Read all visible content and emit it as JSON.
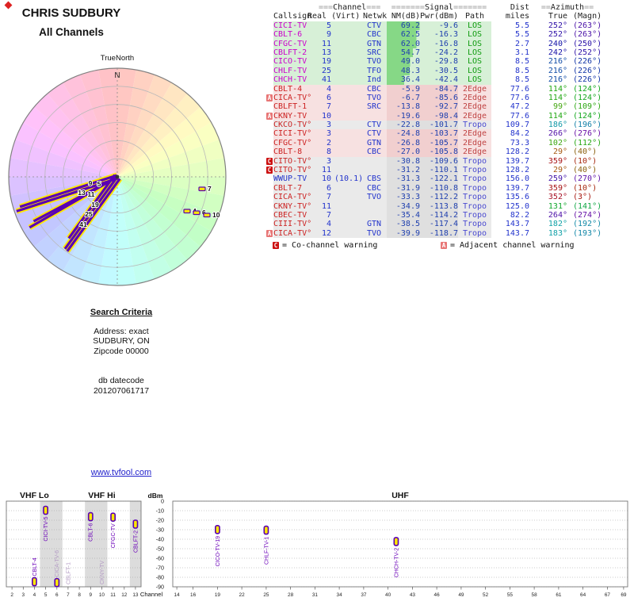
{
  "title": "CHRIS SUDBURY",
  "subtitle": "All Channels",
  "link": {
    "text": "www.tvfool.com"
  },
  "search": {
    "title": "Search Criteria",
    "address": "Address: exact",
    "city": "SUDBURY, ON",
    "zip": "Zipcode 00000",
    "datecode_label": "db datecode",
    "datecode": "201207061717"
  },
  "legend": {
    "c": {
      "letter": "C",
      "text": "= Co-channel warning"
    },
    "a": {
      "letter": "A",
      "text": "= Adjacent channel warning"
    }
  },
  "colors": {
    "callsign_strong": "#cc00cc",
    "callsign_weak": "#cc2222",
    "callsign_digital": "#2233cc",
    "num": "#2233cc",
    "nm": "#1f3fae",
    "nm_bar": "#86d886",
    "path_los": "#0f9b0f",
    "path_edge": "#c04444",
    "path_tropo": "#4b4bd0",
    "badge_c": "#cc1111",
    "badge_a": "#e87676",
    "spoke_purple": "#5a00b4",
    "spoke_yellow": "#ffe800",
    "label_strong": "#6a00b8",
    "label_muted": "#b39ac4",
    "link": "#2222cc"
  },
  "table": {
    "group_headers": {
      "channel": {
        "pre": "===",
        "word": "Channel",
        "post": "==="
      },
      "signal": {
        "pre": "=======",
        "word": "Signal",
        "post": "======="
      },
      "dist": "Dist",
      "azimuth": {
        "pre": "==",
        "word": "Azimuth",
        "post": "=="
      }
    },
    "columns": [
      "Callsign",
      "Real (Virt)",
      "Netwk",
      "NM(dB)",
      "Pwr(dBm)",
      "Path",
      "miles",
      "True",
      "(Magn)"
    ],
    "rows": [
      {
        "cs": "CICI-TV",
        "k": "s",
        "ch": 5,
        "net": "CTV",
        "nm": 69.2,
        "pwr": -9.6,
        "path": "LOS",
        "mi": 5.5,
        "az": 252,
        "mag": 263
      },
      {
        "cs": "CBLT-6",
        "k": "s",
        "ch": 9,
        "net": "CBC",
        "nm": 62.5,
        "pwr": -16.3,
        "path": "LOS",
        "mi": 5.5,
        "az": 252,
        "mag": 263
      },
      {
        "cs": "CFGC-TV",
        "k": "s",
        "ch": 11,
        "net": "GTN",
        "nm": 62.0,
        "pwr": -16.8,
        "path": "LOS",
        "mi": 2.7,
        "az": 240,
        "mag": 250
      },
      {
        "cs": "CBLFT-2",
        "k": "s",
        "ch": 13,
        "net": "SRC",
        "nm": 54.7,
        "pwr": -24.2,
        "path": "LOS",
        "mi": 3.1,
        "az": 242,
        "mag": 252
      },
      {
        "cs": "CICO-TV",
        "k": "s",
        "ch": 19,
        "net": "TVO",
        "nm": 49.0,
        "pwr": -29.8,
        "path": "LOS",
        "mi": 8.5,
        "az": 216,
        "mag": 226
      },
      {
        "cs": "CHLF-TV",
        "k": "s",
        "ch": 25,
        "net": "TFO",
        "nm": 48.3,
        "pwr": -30.5,
        "path": "LOS",
        "mi": 8.5,
        "az": 216,
        "mag": 226
      },
      {
        "cs": "CHCH-TV",
        "k": "s",
        "ch": 41,
        "net": "Ind",
        "nm": 36.4,
        "pwr": -42.4,
        "path": "LOS",
        "mi": 8.5,
        "az": 216,
        "mag": 226
      },
      {
        "cs": "CBLT-4",
        "k": "w",
        "ch": 4,
        "net": "CBC",
        "nm": -5.9,
        "pwr": -84.7,
        "path": "2Edge",
        "mi": 77.6,
        "az": 114,
        "mag": 124
      },
      {
        "w": "A",
        "cs": "CICA-TV°",
        "k": "w",
        "ch": 6,
        "net": "TVO",
        "nm": -6.7,
        "pwr": -85.6,
        "path": "2Edge",
        "mi": 77.6,
        "az": 114,
        "mag": 124
      },
      {
        "cs": "CBLFT-1",
        "k": "w",
        "ch": 7,
        "net": "SRC",
        "nm": -13.8,
        "pwr": -92.7,
        "path": "2Edge",
        "mi": 47.2,
        "az": 99,
        "mag": 109
      },
      {
        "w": "A",
        "cs": "CKNY-TV",
        "k": "w",
        "ch": 10,
        "net": "",
        "nm": -19.6,
        "pwr": -98.4,
        "path": "2Edge",
        "mi": 77.6,
        "az": 114,
        "mag": 124
      },
      {
        "cs": "CKCO-TV°",
        "k": "w",
        "ch": 3,
        "net": "CTV",
        "nm": -22.8,
        "pwr": -101.7,
        "path": "Tropo",
        "mi": 109.7,
        "az": 186,
        "mag": 196
      },
      {
        "cs": "CICI-TV°",
        "k": "w",
        "ch": 3,
        "net": "CTV",
        "nm": -24.8,
        "pwr": -103.7,
        "path": "2Edge",
        "mi": 84.2,
        "az": 266,
        "mag": 276
      },
      {
        "cs": "CFGC-TV°",
        "k": "w",
        "ch": 2,
        "net": "GTN",
        "nm": -26.8,
        "pwr": -105.7,
        "path": "2Edge",
        "mi": 73.3,
        "az": 102,
        "mag": 112
      },
      {
        "cs": "CBLT-8",
        "k": "w",
        "ch": 8,
        "net": "CBC",
        "nm": -27.0,
        "pwr": -105.8,
        "path": "2Edge",
        "mi": 128.2,
        "az": 29,
        "mag": 40
      },
      {
        "w": "C",
        "cs": "CITO-TV°",
        "k": "w",
        "ch": 3,
        "net": "",
        "nm": -30.8,
        "pwr": -109.6,
        "path": "Tropo",
        "mi": 139.7,
        "az": 359,
        "mag": 10
      },
      {
        "w": "C",
        "cs": "CITO-TV°",
        "k": "w",
        "ch": 11,
        "net": "",
        "nm": -31.2,
        "pwr": -110.1,
        "path": "Tropo",
        "mi": 128.2,
        "az": 29,
        "mag": 40
      },
      {
        "cs": "WWUP-TV",
        "k": "d",
        "ch": 10,
        "virt": "(10.1)",
        "net": "CBS",
        "nm": -31.3,
        "pwr": -122.1,
        "path": "Tropo",
        "mi": 156.0,
        "az": 259,
        "mag": 270
      },
      {
        "cs": "CBLT-7",
        "k": "w",
        "ch": 6,
        "net": "CBC",
        "nm": -31.9,
        "pwr": -110.8,
        "path": "Tropo",
        "mi": 139.7,
        "az": 359,
        "mag": 10
      },
      {
        "cs": "CICA-TV°",
        "k": "w",
        "ch": 7,
        "net": "TVO",
        "nm": -33.3,
        "pwr": -112.2,
        "path": "Tropo",
        "mi": 135.6,
        "az": 352,
        "mag": 3
      },
      {
        "cs": "CKNY-TV°",
        "k": "w",
        "ch": 11,
        "net": "",
        "nm": -34.9,
        "pwr": -113.8,
        "path": "Tropo",
        "mi": 125.0,
        "az": 131,
        "mag": 141
      },
      {
        "cs": "CBEC-TV",
        "k": "w",
        "ch": 7,
        "net": "",
        "nm": -35.4,
        "pwr": -114.2,
        "path": "Tropo",
        "mi": 82.2,
        "az": 264,
        "mag": 274
      },
      {
        "cs": "CIII-TV°",
        "k": "w",
        "ch": 4,
        "net": "GTN",
        "nm": -38.5,
        "pwr": -117.4,
        "path": "Tropo",
        "mi": 143.7,
        "az": 182,
        "mag": 192
      },
      {
        "w": "A",
        "cs": "CICA-TV°",
        "k": "w",
        "ch": 12,
        "net": "TVO",
        "nm": -39.9,
        "pwr": -118.7,
        "path": "Tropo",
        "mi": 143.7,
        "az": 183,
        "mag": 193
      }
    ]
  },
  "chart_data": [
    {
      "type": "radar",
      "title": "CHRIS SUDBURY",
      "subtitle": "All Channels",
      "true_north_label": "TrueNorth",
      "north_label": "N",
      "rings": 6,
      "spokes": [
        {
          "ch": "5",
          "az": 252,
          "nm": 69.2,
          "lo": [
            -23,
            12
          ]
        },
        {
          "ch": "9",
          "az": 252,
          "nm": 62.5,
          "lo": [
            -34,
            11
          ]
        },
        {
          "ch": "11",
          "az": 240,
          "nm": 62.0,
          "lo": [
            -33,
            25
          ]
        },
        {
          "ch": "13",
          "az": 242,
          "nm": 54.7,
          "lo": [
            -45,
            23
          ]
        },
        {
          "ch": "19",
          "az": 216,
          "nm": 49.0,
          "lo": [
            -28,
            38
          ]
        },
        {
          "ch": "25",
          "az": 216,
          "nm": 48.3,
          "lo": [
            -36,
            50
          ]
        },
        {
          "ch": "41",
          "az": 216,
          "nm": 36.4,
          "lo": [
            -43,
            63
          ]
        }
      ],
      "dots": [
        {
          "ch": "7",
          "az": 99,
          "lo": [
            114,
            18
          ]
        },
        {
          "ch": "4",
          "az": 114,
          "lo": [
            95,
            46
          ]
        },
        {
          "ch": "6",
          "az": 114,
          "lo": [
            107,
            48
          ]
        },
        {
          "ch": "10",
          "az": 114,
          "lo": [
            120,
            51
          ]
        }
      ]
    },
    {
      "type": "lollipop",
      "ylabel": "dBm",
      "xlabel": "Channel",
      "ylim": [
        0,
        -90
      ],
      "y_ticks": [
        0,
        -10,
        -20,
        -30,
        -40,
        -50,
        -60,
        -70,
        -80,
        -90
      ],
      "bands": [
        {
          "label": "VHF Lo",
          "from": 2,
          "to": 6
        },
        {
          "label": "VHF Hi",
          "from": 7,
          "to": 13
        },
        {
          "label": "UHF",
          "from": 14,
          "to": 69
        }
      ],
      "vhf_ticks": [
        2,
        3,
        4,
        5,
        6,
        7,
        8,
        9,
        10,
        11,
        12,
        13
      ],
      "uhf_ticks": [
        14,
        16,
        19,
        22,
        25,
        28,
        31,
        34,
        37,
        40,
        43,
        46,
        49,
        52,
        55,
        58,
        61,
        64,
        67,
        69
      ],
      "shaded": [
        [
          5,
          6
        ],
        [
          9,
          10
        ],
        [
          13,
          13
        ]
      ],
      "stations": [
        {
          "label": "CBLT-4",
          "ch": 4,
          "dbm": -84.7,
          "muted": false
        },
        {
          "label": "CICI-TV-5",
          "ch": 5,
          "dbm": -9.6,
          "muted": false
        },
        {
          "label": "CICA-TV-6",
          "ch": 6,
          "dbm": -85.6,
          "muted": true
        },
        {
          "label": "CBLFT-1",
          "ch": 7,
          "dbm": -92.7,
          "muted": true
        },
        {
          "label": "CBLT-6",
          "ch": 9,
          "dbm": -16.3,
          "muted": false
        },
        {
          "label": "CKNY-TV",
          "ch": 10,
          "dbm": -98.4,
          "muted": true
        },
        {
          "label": "CFGC-TV",
          "ch": 11,
          "dbm": -16.8,
          "muted": false
        },
        {
          "label": "CBLFT-2",
          "ch": 13,
          "dbm": -24.2,
          "muted": false
        },
        {
          "label": "CICO-TV-19",
          "ch": 19,
          "dbm": -29.8,
          "muted": false
        },
        {
          "label": "CHLF-TV-1",
          "ch": 25,
          "dbm": -30.5,
          "muted": false
        },
        {
          "label": "CHCH-TV-2",
          "ch": 41,
          "dbm": -42.4,
          "muted": false
        }
      ]
    }
  ]
}
